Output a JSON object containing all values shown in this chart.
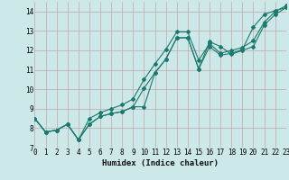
{
  "xlabel": "Humidex (Indice chaleur)",
  "bg_color": "#cde8e8",
  "grid_color": "#c0a8a8",
  "line_color": "#1a7a6e",
  "series1_y": [
    8.5,
    7.8,
    7.9,
    8.2,
    7.4,
    8.2,
    8.6,
    8.75,
    8.85,
    9.1,
    10.05,
    10.85,
    11.55,
    12.65,
    12.65,
    11.05,
    12.45,
    12.2,
    11.8,
    12.0,
    12.2,
    13.3,
    13.85,
    14.2
  ],
  "series2_y": [
    8.5,
    7.8,
    7.9,
    8.2,
    7.4,
    8.2,
    8.6,
    8.75,
    8.85,
    9.1,
    9.1,
    10.85,
    11.55,
    12.65,
    12.65,
    11.05,
    12.2,
    11.75,
    11.85,
    12.05,
    13.2,
    13.85,
    14.05,
    14.2
  ],
  "series3_y": [
    8.5,
    7.8,
    7.9,
    8.2,
    7.4,
    8.5,
    8.8,
    9.0,
    9.2,
    9.5,
    10.5,
    11.3,
    12.05,
    12.95,
    12.95,
    11.5,
    12.35,
    11.85,
    12.0,
    12.15,
    12.5,
    13.45,
    14.0,
    14.3
  ],
  "xlim": [
    0,
    23
  ],
  "ylim": [
    7.0,
    14.5
  ],
  "yticks": [
    7,
    8,
    9,
    10,
    11,
    12,
    13,
    14
  ],
  "xticks": [
    0,
    1,
    2,
    3,
    4,
    5,
    6,
    7,
    8,
    9,
    10,
    11,
    12,
    13,
    14,
    15,
    16,
    17,
    18,
    19,
    20,
    21,
    22,
    23
  ]
}
